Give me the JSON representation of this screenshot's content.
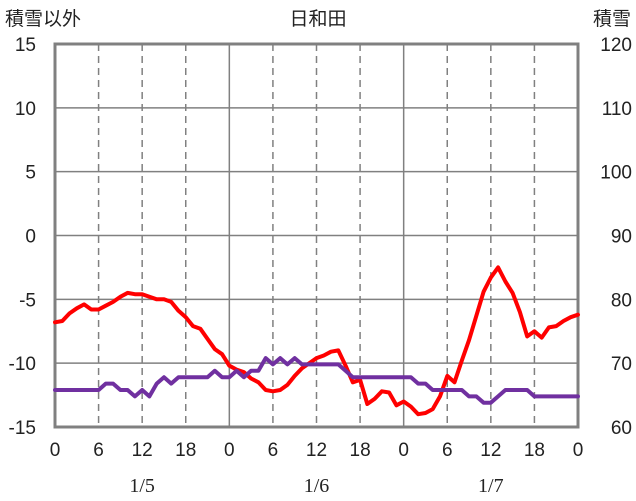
{
  "chart_data": {
    "type": "line",
    "title": "日和田",
    "left_axis_label": "積雪以外",
    "right_axis_label": "積雪",
    "left_ylim": [
      -15,
      15
    ],
    "left_ticks": [
      "15",
      "10",
      "5",
      "0",
      "-5",
      "-10",
      "-15"
    ],
    "right_ylim": [
      60,
      120
    ],
    "right_ticks": [
      "120",
      "110",
      "100",
      "90",
      "80",
      "70",
      "60"
    ],
    "x_tick_labels": [
      "0",
      "6",
      "12",
      "18",
      "0",
      "6",
      "12",
      "18",
      "0",
      "6",
      "12",
      "18",
      "0"
    ],
    "date_labels": [
      "1/5",
      "1/6",
      "1/7"
    ],
    "grid": true,
    "series": [
      {
        "axis": "left",
        "color": "#ff0000",
        "x": [
          0,
          1,
          2,
          3,
          4,
          5,
          6,
          7,
          8,
          9,
          10,
          11,
          12,
          13,
          14,
          15,
          16,
          17,
          18,
          19,
          20,
          21,
          22,
          23,
          24,
          25,
          26,
          27,
          28,
          29,
          30,
          31,
          32,
          33,
          34,
          35,
          36,
          37,
          38,
          39,
          40,
          41,
          42,
          43,
          44,
          45,
          46,
          47,
          48,
          49,
          50,
          51,
          52,
          53,
          54,
          55,
          56,
          57,
          58,
          59,
          60,
          61,
          62,
          63,
          64,
          65,
          66,
          67,
          68,
          69,
          70,
          71,
          72
        ],
        "values": [
          -6.8,
          -6.7,
          -6.1,
          -5.7,
          -5.4,
          -5.8,
          -5.8,
          -5.5,
          -5.2,
          -4.8,
          -4.5,
          -4.6,
          -4.6,
          -4.8,
          -5.0,
          -5.0,
          -5.2,
          -5.9,
          -6.4,
          -7.1,
          -7.3,
          -8.1,
          -8.9,
          -9.3,
          -10.2,
          -10.5,
          -10.7,
          -11.2,
          -11.5,
          -12.1,
          -12.2,
          -12.1,
          -11.7,
          -11.0,
          -10.4,
          -10.0,
          -9.6,
          -9.4,
          -9.1,
          -9.0,
          -10.2,
          -11.5,
          -11.3,
          -13.2,
          -12.8,
          -12.2,
          -12.3,
          -13.3,
          -13.0,
          -13.4,
          -14.0,
          -13.9,
          -13.6,
          -12.6,
          -11.0,
          -11.5,
          -9.8,
          -8.2,
          -6.3,
          -4.4,
          -3.3,
          -2.5,
          -3.6,
          -4.5,
          -6.0,
          -7.9,
          -7.5,
          -8.0,
          -7.2,
          -7.1,
          -6.7,
          -6.4,
          -6.2
        ]
      },
      {
        "axis": "left",
        "color": "#7030a0",
        "x": [
          0,
          1,
          2,
          3,
          4,
          5,
          6,
          7,
          8,
          9,
          10,
          11,
          12,
          13,
          14,
          15,
          16,
          17,
          18,
          19,
          20,
          21,
          22,
          23,
          24,
          25,
          26,
          27,
          28,
          29,
          30,
          31,
          32,
          33,
          34,
          35,
          36,
          37,
          38,
          39,
          40,
          41,
          42,
          43,
          44,
          45,
          46,
          47,
          48,
          49,
          50,
          51,
          52,
          53,
          54,
          55,
          56,
          57,
          58,
          59,
          60,
          61,
          62,
          63,
          64,
          65,
          66,
          67,
          68,
          69,
          70,
          71,
          72
        ],
        "values": [
          -12.1,
          -12.1,
          -12.1,
          -12.1,
          -12.1,
          -12.1,
          -12.1,
          -11.6,
          -11.6,
          -12.1,
          -12.1,
          -12.6,
          -12.1,
          -12.6,
          -11.6,
          -11.1,
          -11.6,
          -11.1,
          -11.1,
          -11.1,
          -11.1,
          -11.1,
          -10.6,
          -11.1,
          -11.1,
          -10.6,
          -11.1,
          -10.6,
          -10.6,
          -9.6,
          -10.1,
          -9.6,
          -10.1,
          -9.6,
          -10.1,
          -10.1,
          -10.1,
          -10.1,
          -10.1,
          -10.1,
          -10.6,
          -11.1,
          -11.1,
          -11.1,
          -11.1,
          -11.1,
          -11.1,
          -11.1,
          -11.1,
          -11.1,
          -11.6,
          -11.6,
          -12.1,
          -12.1,
          -12.1,
          -12.1,
          -12.1,
          -12.6,
          -12.6,
          -13.1,
          -13.1,
          -12.6,
          -12.1,
          -12.1,
          -12.1,
          -12.1,
          -12.6,
          -12.6,
          -12.6,
          -12.6,
          -12.6,
          -12.6,
          -12.6
        ]
      }
    ]
  }
}
